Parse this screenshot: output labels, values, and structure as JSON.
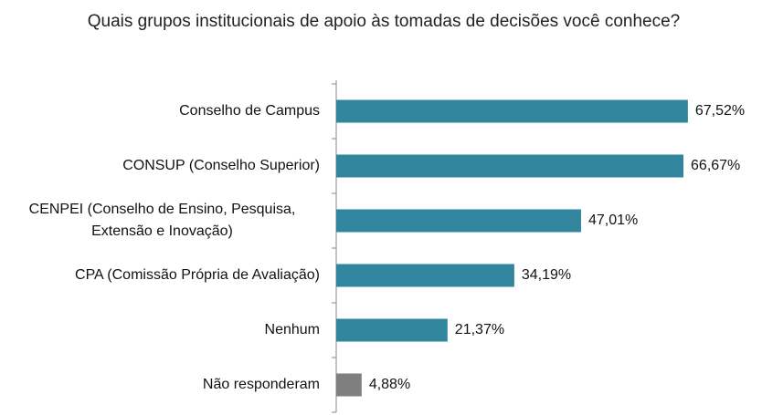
{
  "chart_data": {
    "type": "bar",
    "orientation": "horizontal",
    "title": "Quais grupos institucionais de apoio às tomadas de decisões você conhece?",
    "categories": [
      "Conselho de Campus",
      "CONSUP (Conselho Superior)",
      "CENPEI (Conselho de Ensino, Pesquisa, Extensão e Inovação)",
      "CPA (Comissão Própria de Avaliação)",
      "Nenhum",
      "Não responderam"
    ],
    "values": [
      67.52,
      66.67,
      47.01,
      34.19,
      21.37,
      4.88
    ],
    "value_labels": [
      "67,52%",
      "66,67%",
      "47,01%",
      "34,19%",
      "21,37%",
      "4,88%"
    ],
    "colors": [
      "#31859c",
      "#31859c",
      "#31859c",
      "#31859c",
      "#31859c",
      "#7f7f7f"
    ]
  }
}
